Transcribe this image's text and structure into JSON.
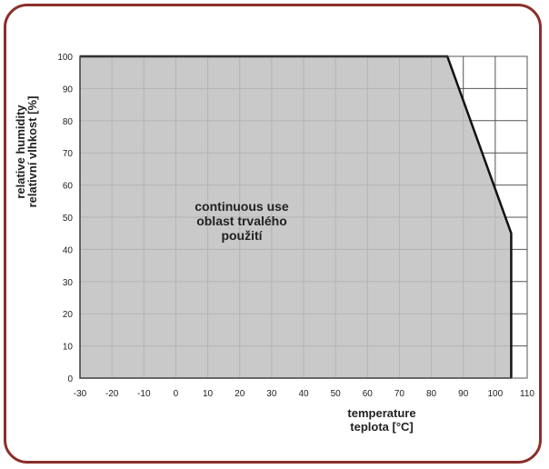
{
  "colors": {
    "border": "#8b2f2a",
    "area_fill": "#c2c2c2",
    "grid": "#555555",
    "boundary_line": "#111111"
  },
  "chart_data": {
    "type": "area",
    "x": [
      -30,
      85,
      105,
      105
    ],
    "y": [
      100,
      100,
      45,
      0
    ],
    "xlim": [
      -30,
      110
    ],
    "ylim": [
      0,
      100
    ],
    "x_ticks": [
      -30,
      -20,
      -10,
      0,
      10,
      20,
      30,
      40,
      50,
      60,
      70,
      80,
      90,
      100,
      110
    ],
    "y_ticks": [
      0,
      10,
      20,
      30,
      40,
      50,
      60,
      70,
      80,
      90,
      100
    ],
    "grid": true,
    "xlabel": [
      "temperature",
      "teplota [°C]"
    ],
    "ylabel": [
      "relative humidity",
      "relativní vlhkost [%]"
    ],
    "annotation": [
      "continuous use",
      "oblast trvalého",
      "použití"
    ]
  }
}
